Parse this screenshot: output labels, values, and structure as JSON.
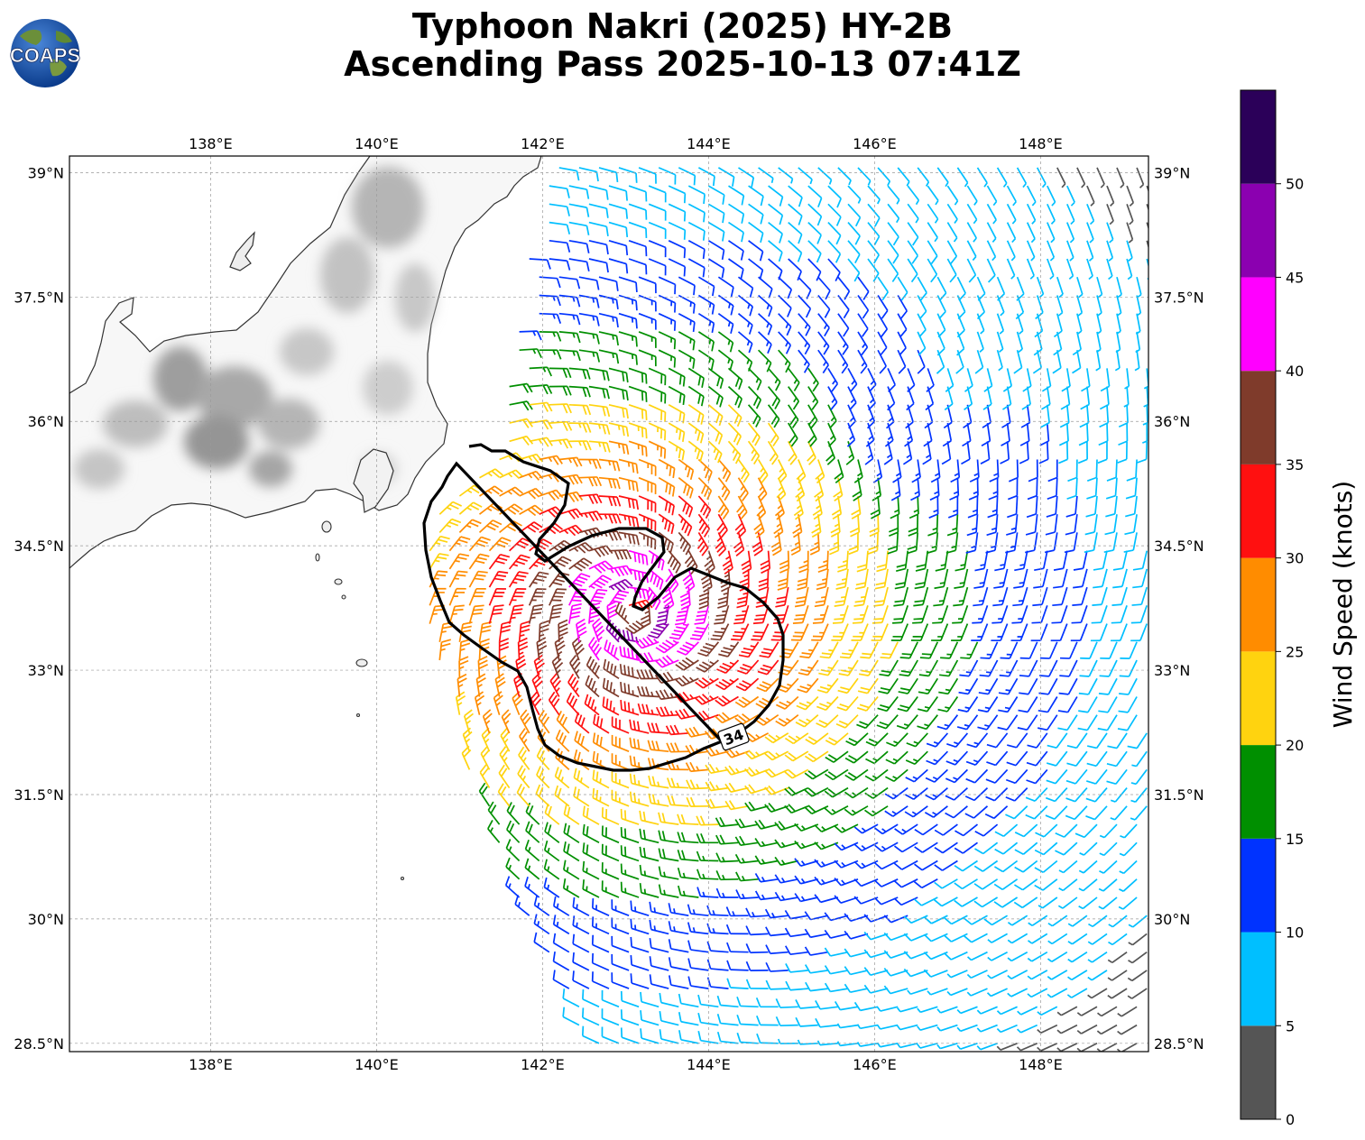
{
  "title": {
    "line1": "Typhoon Nakri (2025) HY-2B",
    "line2": "Ascending Pass 2025-10-13 07:41Z"
  },
  "logo": {
    "text": "COAPS",
    "icon": "globe-logo-icon"
  },
  "map": {
    "lon_range": [
      136.3,
      149.3
    ],
    "lat_range": [
      28.4,
      39.2
    ],
    "lon_ticks": [
      "138°E",
      "140°E",
      "142°E",
      "144°E",
      "146°E",
      "148°E"
    ],
    "lon_tick_values": [
      138,
      140,
      142,
      144,
      146,
      148
    ],
    "lat_ticks": [
      "39°N",
      "37.5°N",
      "36°N",
      "34.5°N",
      "33°N",
      "31.5°N",
      "30°N",
      "28.5°N"
    ],
    "lat_tick_values": [
      39,
      37.5,
      36,
      34.5,
      33,
      31.5,
      30,
      28.5
    ],
    "grid": true,
    "land_shading": "grayscale-topography",
    "contour_label": "34",
    "storm_center": {
      "lon": 143.1,
      "lat": 33.7
    }
  },
  "colorbar": {
    "title": "Wind Speed (knots)",
    "ticks": [
      "0",
      "5",
      "10",
      "15",
      "20",
      "25",
      "30",
      "35",
      "40",
      "45",
      "50"
    ],
    "bins": [
      {
        "min": 0,
        "max": 5,
        "color": "#555555"
      },
      {
        "min": 5,
        "max": 10,
        "color": "#00bfff"
      },
      {
        "min": 10,
        "max": 15,
        "color": "#0033ff"
      },
      {
        "min": 15,
        "max": 20,
        "color": "#008f00"
      },
      {
        "min": 20,
        "max": 25,
        "color": "#ffd30f"
      },
      {
        "min": 25,
        "max": 30,
        "color": "#ff8c00"
      },
      {
        "min": 30,
        "max": 35,
        "color": "#ff1010"
      },
      {
        "min": 35,
        "max": 40,
        "color": "#7f3b2b"
      },
      {
        "min": 40,
        "max": 45,
        "color": "#ff00ff"
      },
      {
        "min": 45,
        "max": 50,
        "color": "#8b00b0"
      },
      {
        "min": 50,
        "max": 55,
        "color": "#2b0059"
      }
    ]
  }
}
